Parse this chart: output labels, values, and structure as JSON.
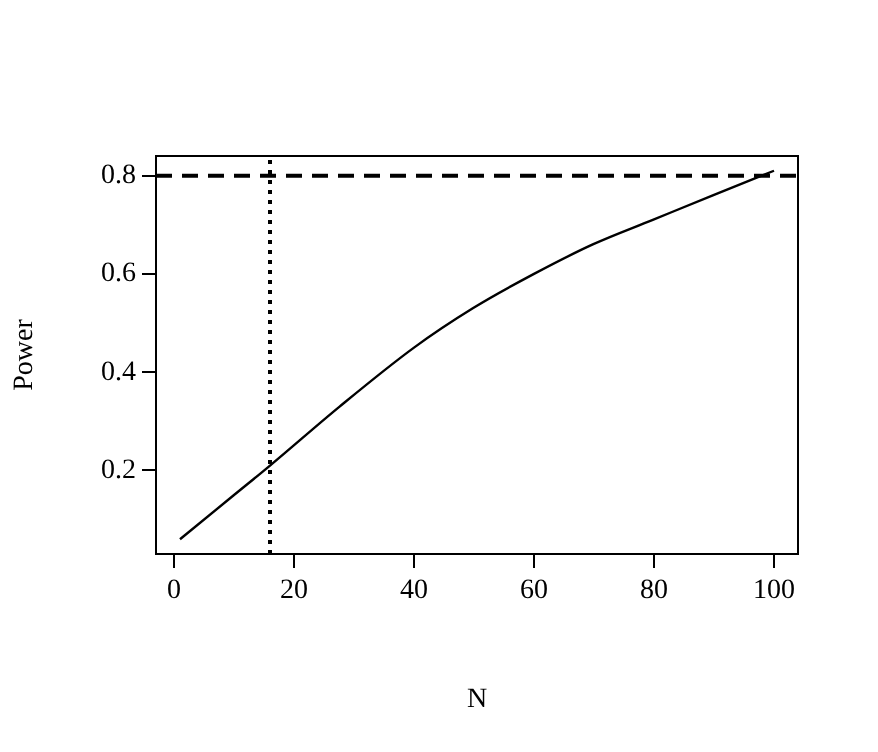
{
  "chart_data": {
    "type": "line",
    "xlabel": "N",
    "ylabel": "Power",
    "x": [
      1,
      10,
      16,
      27.6,
      40,
      49.8,
      60,
      69.8,
      79.8,
      89.8,
      100
    ],
    "series": [
      {
        "color": "#000000",
        "values": [
          0.06,
          0.15,
          0.21,
          0.33,
          0.45,
          0.53,
          0.6,
          0.66,
          0.71,
          0.76,
          0.81
        ]
      }
    ],
    "xlim": [
      -3,
      104
    ],
    "xticks": [
      0,
      20,
      40,
      60,
      80,
      100
    ],
    "ylim": [
      0.03,
      0.84
    ],
    "yticks": [
      0.2,
      0.4,
      0.6,
      0.8
    ],
    "ref_lines": [
      {
        "axis": "y",
        "value": 0.8,
        "line_style": "dashed",
        "color": "#000000"
      },
      {
        "axis": "x",
        "value": 16,
        "line_style": "dotted",
        "color": "#000000"
      }
    ],
    "grid": false,
    "legend": false,
    "marker": "none",
    "line_style": "solid"
  }
}
